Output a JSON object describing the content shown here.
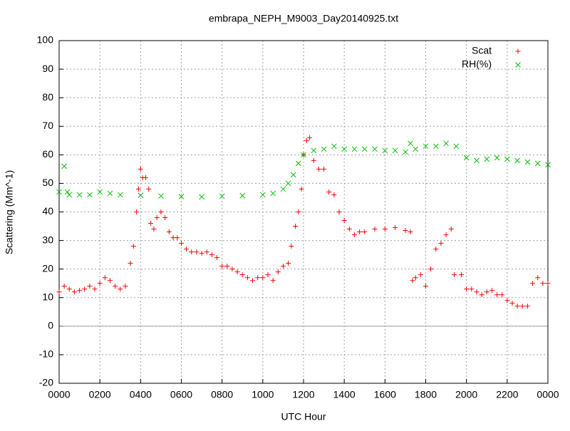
{
  "chart_data": {
    "type": "scatter",
    "title": "embrapa_NEPH_M9003_Day20140925.txt",
    "x_label": "UTC Hour",
    "y_label": "Scattering (Mm^-1)",
    "xlim": [
      0,
      24
    ],
    "ylim": [
      -20,
      100
    ],
    "xticks": [
      {
        "value": 0,
        "label": "0000"
      },
      {
        "value": 2,
        "label": "0200"
      },
      {
        "value": 4,
        "label": "0400"
      },
      {
        "value": 6,
        "label": "0600"
      },
      {
        "value": 8,
        "label": "0800"
      },
      {
        "value": 10,
        "label": "1000"
      },
      {
        "value": 12,
        "label": "1200"
      },
      {
        "value": 14,
        "label": "1400"
      },
      {
        "value": 16,
        "label": "1600"
      },
      {
        "value": 18,
        "label": "1800"
      },
      {
        "value": 20,
        "label": "2000"
      },
      {
        "value": 22,
        "label": "2200"
      },
      {
        "value": 24,
        "label": "0000"
      }
    ],
    "yticks": [
      -20,
      -10,
      0,
      10,
      20,
      30,
      40,
      50,
      60,
      70,
      80,
      90,
      100
    ],
    "grid": true,
    "legend": "top-right",
    "series": [
      {
        "name": "Scat",
        "color": "#ff0000",
        "marker": "+",
        "x": [
          0,
          0.25,
          0.5,
          0.75,
          1,
          1.25,
          1.5,
          1.75,
          2,
          2.25,
          2.5,
          2.75,
          3,
          3.25,
          3.5,
          3.65,
          3.8,
          3.9,
          4,
          4.1,
          4.25,
          4.4,
          4.5,
          4.65,
          4.8,
          5,
          5.2,
          5.4,
          5.6,
          5.8,
          6,
          6.25,
          6.5,
          6.75,
          7,
          7.25,
          7.5,
          7.75,
          8,
          8.25,
          8.5,
          8.75,
          9,
          9.25,
          9.5,
          9.75,
          10,
          10.25,
          10.5,
          10.75,
          11,
          11.25,
          11.4,
          11.6,
          11.75,
          11.9,
          12,
          12.15,
          12.3,
          12.5,
          12.75,
          13,
          13.25,
          13.5,
          13.75,
          14,
          14.25,
          14.5,
          14.75,
          15,
          15.5,
          16,
          16.5,
          17,
          17.25,
          17.35,
          17.5,
          17.75,
          18,
          18.25,
          18.5,
          18.75,
          19,
          19.25,
          19.4,
          19.75,
          20,
          20.25,
          20.5,
          20.75,
          21,
          21.25,
          21.5,
          21.75,
          22,
          22.25,
          22.5,
          22.75,
          23,
          23.25,
          23.5,
          23.75,
          24
        ],
        "values": [
          12,
          14,
          13,
          12,
          12.5,
          13,
          14,
          13,
          15,
          17,
          16,
          14,
          13,
          14,
          22,
          28,
          40,
          48,
          55,
          52,
          52,
          48,
          36,
          34,
          38,
          40,
          38,
          33,
          31,
          31,
          29,
          27,
          26,
          26,
          25.5,
          26,
          25,
          24,
          21,
          21,
          20,
          19,
          18,
          17,
          16,
          17,
          17,
          18,
          16,
          19,
          21,
          22,
          28,
          35,
          40,
          48,
          60,
          65,
          66,
          58,
          55,
          55,
          47,
          46,
          40,
          37,
          34,
          32,
          33,
          33,
          34,
          34,
          34.5,
          33.5,
          33,
          16,
          17,
          18,
          14,
          20,
          27,
          29,
          32,
          34,
          18,
          18,
          13,
          13,
          12,
          11,
          12,
          12.5,
          11,
          11,
          9,
          8,
          7,
          7,
          7,
          15,
          17,
          15,
          15
        ]
      },
      {
        "name": "RH(%)",
        "color": "#00c000",
        "marker": "x",
        "x": [
          0,
          0.25,
          0.4,
          0.5,
          1,
          1.5,
          2,
          2.5,
          3,
          4,
          5,
          6,
          7,
          8,
          9,
          10,
          10.5,
          11,
          11.25,
          11.5,
          11.75,
          12,
          12.5,
          13,
          13.5,
          14,
          14.5,
          15,
          15.5,
          16,
          16.5,
          17,
          17.25,
          17.5,
          18,
          18.5,
          19,
          19.5,
          20,
          20.5,
          21,
          21.5,
          22,
          22.5,
          23,
          23.5,
          24
        ],
        "values": [
          47,
          56,
          47,
          46,
          46,
          46,
          47,
          46.5,
          46,
          45.8,
          45.6,
          45.4,
          45.3,
          45.5,
          45.7,
          46,
          46.5,
          48,
          50,
          53,
          57,
          60,
          61.5,
          62,
          63,
          62,
          62,
          62,
          62,
          61.5,
          61.5,
          61,
          64,
          62,
          63,
          63,
          64,
          63,
          59,
          58,
          58.5,
          59,
          58.5,
          58,
          57.5,
          57,
          56.5
        ]
      }
    ]
  }
}
